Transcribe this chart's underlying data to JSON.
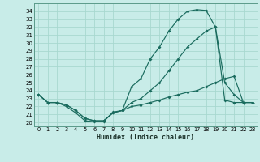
{
  "xlabel": "Humidex (Indice chaleur)",
  "bg_color": "#c8ece8",
  "grid_color": "#a8d8d0",
  "line_color": "#1a6b5e",
  "line1_y": [
    23.5,
    22.5,
    22.5,
    22.0,
    21.2,
    20.2,
    20.1,
    20.1,
    21.3,
    21.5,
    24.5,
    25.5,
    28.0,
    29.5,
    31.5,
    33.0,
    34.0,
    34.2,
    34.1,
    32.0,
    25.0,
    23.5,
    22.5,
    22.5
  ],
  "line2_y": [
    23.5,
    22.5,
    22.5,
    22.2,
    21.5,
    20.5,
    20.2,
    20.2,
    21.2,
    21.5,
    22.5,
    23.0,
    24.0,
    25.0,
    26.5,
    28.0,
    29.5,
    30.5,
    31.5,
    32.0,
    22.8,
    22.5,
    22.5,
    22.5
  ],
  "line3_y": [
    23.5,
    22.5,
    22.5,
    22.2,
    21.5,
    20.5,
    20.2,
    20.2,
    21.2,
    21.5,
    22.0,
    22.2,
    22.5,
    22.8,
    23.2,
    23.5,
    23.8,
    24.0,
    24.5,
    25.0,
    25.5,
    25.8,
    22.5,
    22.5
  ],
  "xlim": [
    -0.5,
    23.5
  ],
  "ylim": [
    19.5,
    35.0
  ],
  "xticks": [
    0,
    1,
    2,
    3,
    4,
    5,
    6,
    7,
    8,
    9,
    10,
    11,
    12,
    13,
    14,
    15,
    16,
    17,
    18,
    19,
    20,
    21,
    22,
    23
  ],
  "yticks": [
    20,
    21,
    22,
    23,
    24,
    25,
    26,
    27,
    28,
    29,
    30,
    31,
    32,
    33,
    34
  ]
}
